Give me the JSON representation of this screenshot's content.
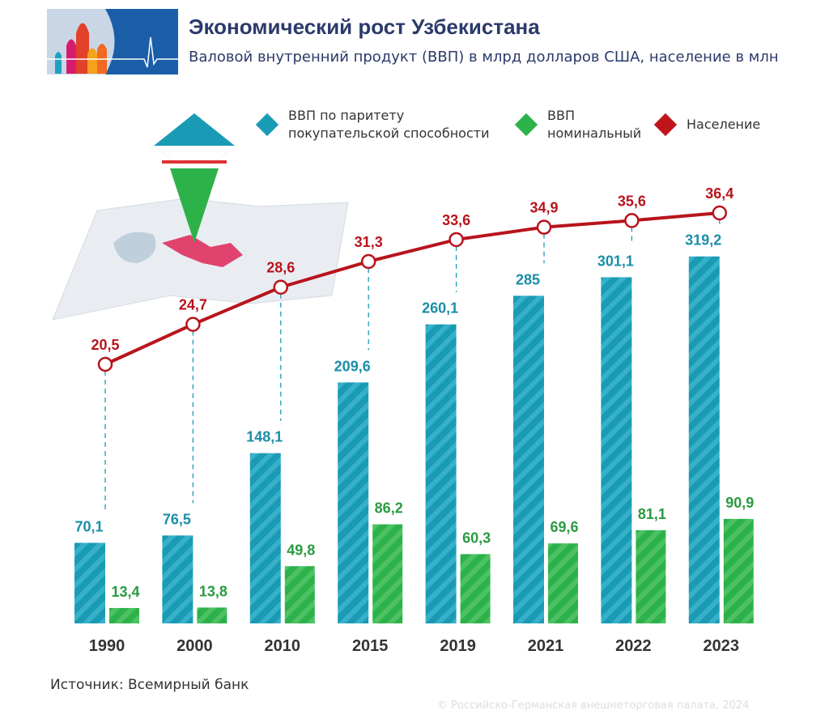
{
  "header": {
    "title": "Экономический рост Узбекистана",
    "subtitle": "Валовой внутренний продукт (ВВП) в млрд долларов США, население в млн"
  },
  "legend": [
    {
      "label_line1": "ВВП по паритету",
      "label_line2": "покупательской способности",
      "color": "#1a9bb5"
    },
    {
      "label_line1": "ВВП",
      "label_line2": "номинальный",
      "color": "#2db24a"
    },
    {
      "label_line1": "Население",
      "label_line2": "",
      "color": "#c0141c"
    }
  ],
  "chart_data": {
    "type": "bar",
    "categories": [
      "1990",
      "2000",
      "2010",
      "2015",
      "2019",
      "2021",
      "2022",
      "2023"
    ],
    "series": [
      {
        "name": "ВВП по паритету покупательской способности",
        "type": "bar",
        "color": "#1a9bb5",
        "values": [
          70.1,
          76.5,
          148.1,
          209.6,
          260.1,
          285,
          301.1,
          319.2
        ],
        "labels": [
          "70,1",
          "76,5",
          "148,1",
          "209,6",
          "260,1",
          "285",
          "301,1",
          "319,2"
        ]
      },
      {
        "name": "ВВП номинальный",
        "type": "bar",
        "color": "#2db24a",
        "values": [
          13.4,
          13.8,
          49.8,
          86.2,
          60.3,
          69.6,
          81.1,
          90.9
        ],
        "labels": [
          "13,4",
          "13,8",
          "49,8",
          "86,2",
          "60,3",
          "69,6",
          "81,1",
          "90,9"
        ]
      },
      {
        "name": "Население",
        "type": "line",
        "color": "#c0141c",
        "values": [
          20.5,
          24.7,
          28.6,
          31.3,
          33.6,
          34.9,
          35.6,
          36.4
        ],
        "labels": [
          "20,5",
          "24,7",
          "28,6",
          "31,3",
          "33,6",
          "34,9",
          "35,6",
          "36,4"
        ]
      }
    ],
    "grid": false
  },
  "footer": {
    "source": "Источник: Всемирный банк",
    "copyright": "© Российско-Германская внешнеторговая палата, 2024"
  }
}
